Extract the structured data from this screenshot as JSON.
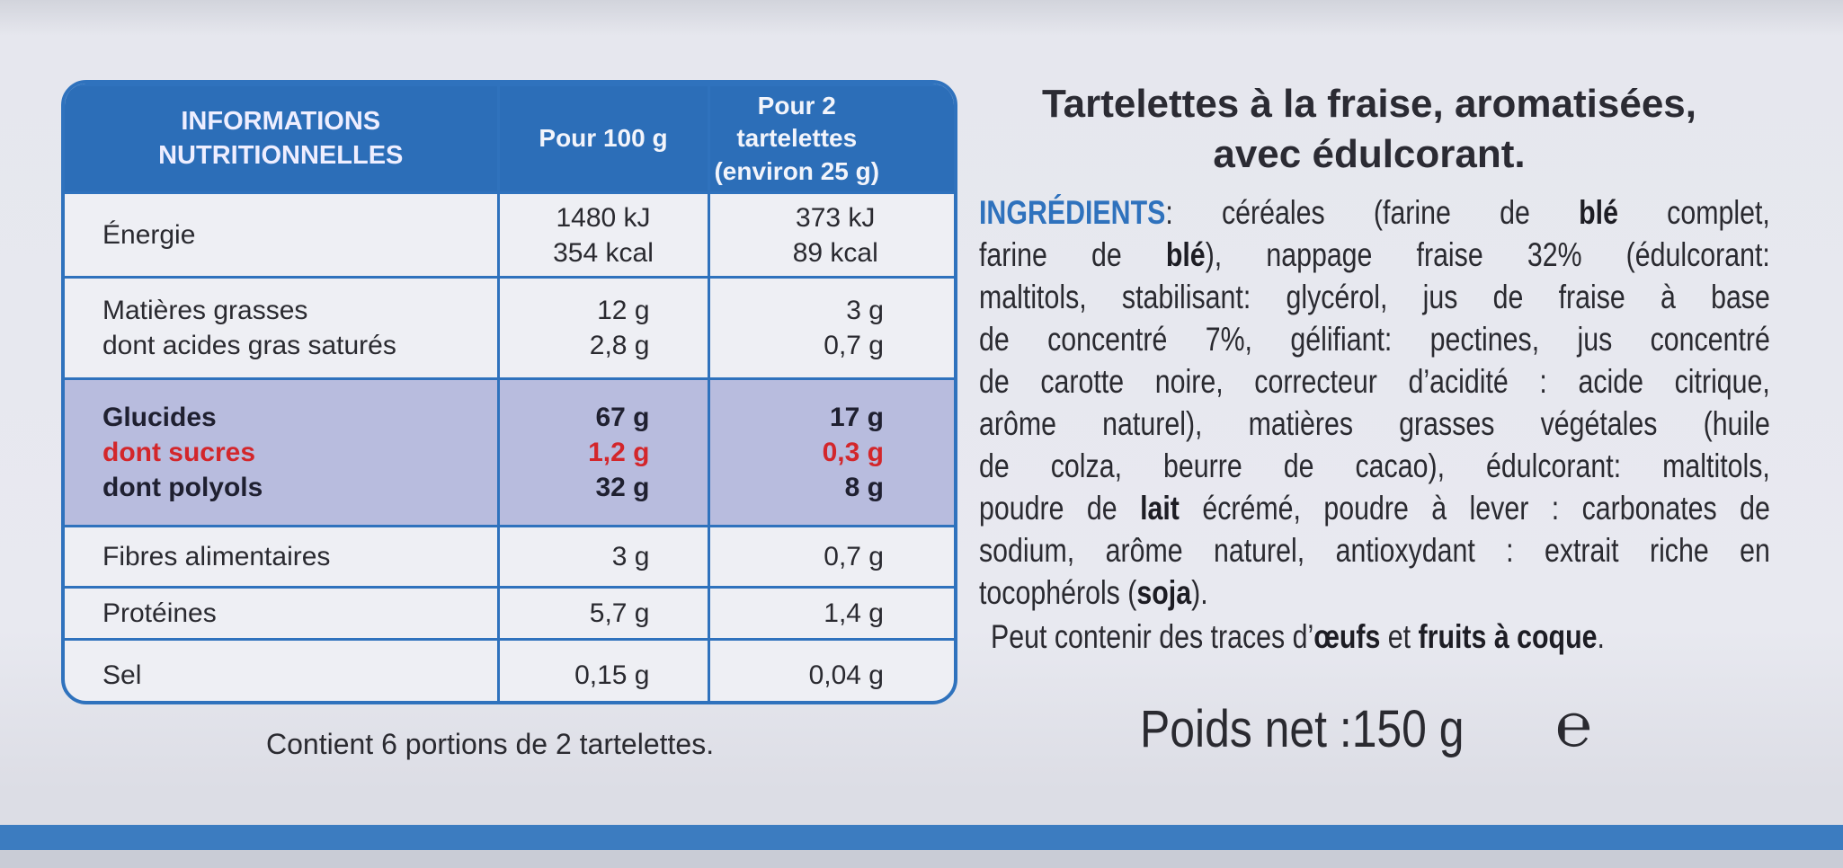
{
  "table": {
    "header": [
      [
        "INFORMATIONS",
        "NUTRITIONNELLES"
      ],
      [
        "Pour 100 g"
      ],
      [
        "Pour 2 tartelettes",
        "(environ 25 g)"
      ]
    ],
    "rows": [
      [
        [
          "Énergie"
        ],
        [
          "1480 kJ",
          "354 kcal"
        ],
        [
          "373 kJ",
          "89 kcal"
        ]
      ],
      [
        [
          "Matières grasses",
          "dont acides gras saturés"
        ],
        [
          "12 g",
          "2,8 g"
        ],
        [
          "3 g",
          "0,7 g"
        ]
      ],
      [
        [
          "Glucides",
          "dont sucres",
          "dont polyols"
        ],
        [
          "67 g",
          "1,2 g",
          "32 g"
        ],
        [
          "17 g",
          "0,3 g",
          "8 g"
        ]
      ],
      [
        [
          "Fibres alimentaires"
        ],
        [
          "3 g"
        ],
        [
          "0,7 g"
        ]
      ],
      [
        [
          "Protéines"
        ],
        [
          "5,7 g"
        ],
        [
          "1,4 g"
        ]
      ],
      [
        [
          "Sel"
        ],
        [
          "0,15 g"
        ],
        [
          "0,04 g"
        ]
      ]
    ]
  },
  "footer": "Contient 6 portions de 2 tartelettes.",
  "product_title": [
    "Tartelettes à la fraise, aromatisées,",
    "avec édulcorant."
  ],
  "ingredients": [
    [
      {
        "text": "INGRÉDIENTS",
        "label": true
      },
      ": céréales (farine de ",
      {
        "text": "blé",
        "bold": true
      },
      " complet,"
    ],
    [
      "farine de ",
      {
        "text": "blé",
        "bold": true
      },
      "), nappage fraise 32% (édulcorant:"
    ],
    [
      "maltitols, stabilisant: glycérol, jus de fraise à base"
    ],
    [
      "de concentré 7%, gélifiant: pectines, jus concentré"
    ],
    [
      "de carotte noire, correcteur d’acidité : acide citrique,"
    ],
    [
      "arôme naturel), matières grasses végétales (huile"
    ],
    [
      "de colza, beurre de cacao), édulcorant: maltitols,"
    ],
    [
      "poudre de ",
      {
        "text": "lait",
        "bold": true
      },
      " écrémé, poudre à lever : carbonates de"
    ],
    [
      "sodium, arôme naturel, antioxydant : extrait riche en"
    ],
    [
      "tocophérols (",
      {
        "text": "soja",
        "bold": true
      },
      ")."
    ]
  ],
  "allergens": [
    "Peut contenir des traces d’",
    {
      "text": "œufs",
      "bold": true
    },
    " et ",
    {
      "text": "fruits à coque",
      "bold": true
    },
    "."
  ],
  "net_weight": "Poids net :150 g",
  "estimated_sign": "℮"
}
